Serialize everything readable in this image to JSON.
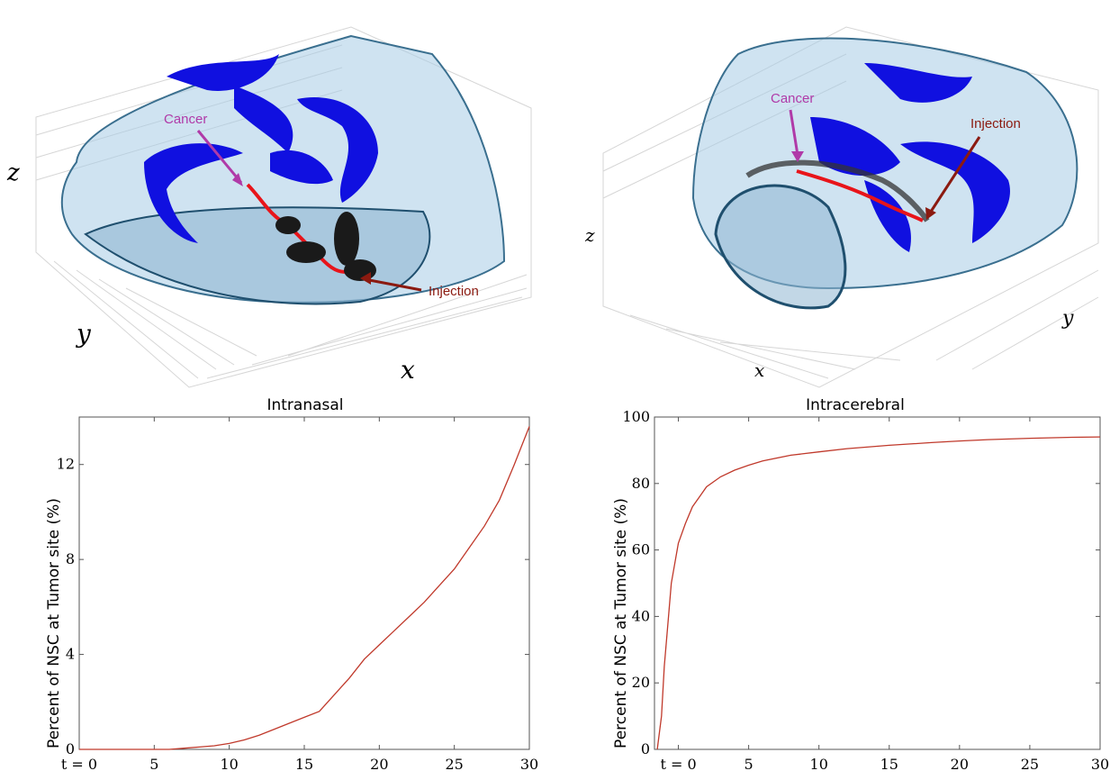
{
  "panels_3d": [
    {
      "axis_labels": {
        "x": "x",
        "y": "y",
        "z": "z"
      },
      "annotations": {
        "cancer": "Cancer",
        "injection": "Injection"
      },
      "colors": {
        "cancer": "#b03aa8",
        "injection": "#8b1a10",
        "path": "#e8141a",
        "cells": "#1010e0",
        "brain": "#a8cce6"
      }
    },
    {
      "axis_labels": {
        "x": "x",
        "y": "y",
        "z": "z"
      },
      "annotations": {
        "cancer": "Cancer",
        "injection": "Injection"
      },
      "colors": {
        "cancer": "#b03aa8",
        "injection": "#8b1a10",
        "path": "#e8141a",
        "cells": "#1010e0",
        "brain": "#a8cce6"
      }
    }
  ],
  "chart_data": [
    {
      "type": "line",
      "title": "Intranasal",
      "xlabel": "",
      "ylabel": "Percent of NSC at Tumor site (%)",
      "xlim": [
        0,
        30
      ],
      "ylim": [
        0,
        14
      ],
      "xticks": [
        0,
        5,
        10,
        15,
        20,
        25,
        30
      ],
      "xtick_labels": [
        "t = 0",
        "5",
        "10",
        "15",
        "20",
        "25",
        "30"
      ],
      "yticks": [
        0,
        4,
        8,
        12
      ],
      "ytick_labels": [
        "0",
        "4",
        "8",
        "12"
      ],
      "line_color": "#c0392b",
      "x": [
        0,
        2,
        4,
        6,
        7,
        8,
        9,
        10,
        11,
        12,
        13,
        14,
        15,
        16,
        17,
        18,
        19,
        20,
        21,
        22,
        23,
        24,
        25,
        26,
        27,
        28,
        29,
        30
      ],
      "y": [
        0,
        0,
        0,
        0,
        0.05,
        0.1,
        0.15,
        0.25,
        0.4,
        0.6,
        0.85,
        1.1,
        1.35,
        1.6,
        2.3,
        3.0,
        3.8,
        4.4,
        5.0,
        5.6,
        6.2,
        6.9,
        7.6,
        8.5,
        9.4,
        10.5,
        12.0,
        13.6
      ]
    },
    {
      "type": "line",
      "title": "Intracerebral",
      "xlabel": "",
      "ylabel": "Percent of NSC at Tumor site (%)",
      "xlim": [
        -1.7,
        30
      ],
      "ylim": [
        0,
        100
      ],
      "xticks": [
        0,
        5,
        10,
        15,
        20,
        25,
        30
      ],
      "xtick_labels": [
        "t = 0",
        "5",
        "10",
        "15",
        "20",
        "25",
        "30"
      ],
      "yticks": [
        0,
        20,
        40,
        60,
        80,
        100
      ],
      "ytick_labels": [
        "0",
        "20",
        "40",
        "60",
        "80",
        "100"
      ],
      "line_color": "#c0392b",
      "x": [
        -1.5,
        -1.2,
        -1.0,
        -0.7,
        -0.5,
        0,
        0.5,
        1,
        1.5,
        2,
        3,
        4,
        5,
        6,
        8,
        10,
        12,
        15,
        18,
        20,
        22,
        25,
        28,
        30
      ],
      "y": [
        0,
        10,
        25,
        40,
        50,
        62,
        68,
        73,
        76,
        79,
        82,
        84,
        85.5,
        86.8,
        88.5,
        89.5,
        90.5,
        91.5,
        92.3,
        92.8,
        93.2,
        93.6,
        93.9,
        94
      ]
    }
  ]
}
